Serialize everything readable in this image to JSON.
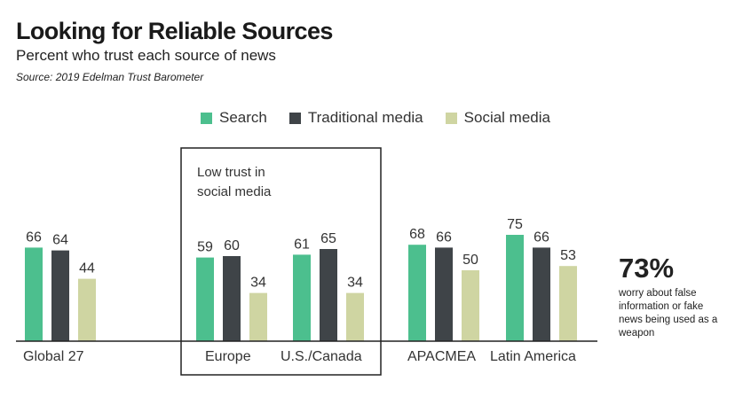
{
  "header": {
    "title": "Looking for Reliable Sources",
    "subtitle": "Percent who trust each source of news",
    "source": "Source: 2019 Edelman Trust Barometer"
  },
  "highlight_box": {
    "line1": "Low trust in",
    "line2": "social media"
  },
  "callout": {
    "value": "73%",
    "text": "worry about false information or fake news being used as a weapon"
  },
  "chart_data": {
    "type": "bar",
    "categories": [
      "Global 27",
      "Europe",
      "U.S./Canada",
      "APACMEA",
      "Latin America"
    ],
    "series": [
      {
        "name": "Search",
        "color": "#4cbf8e",
        "values": [
          66,
          59,
          61,
          68,
          75
        ]
      },
      {
        "name": "Traditional media",
        "color": "#3f4448",
        "values": [
          64,
          60,
          65,
          66,
          66
        ]
      },
      {
        "name": "Social media",
        "color": "#cfd5a2",
        "values": [
          44,
          34,
          34,
          50,
          53
        ]
      }
    ],
    "ylim": [
      0,
      100
    ],
    "grid": false,
    "legend": "top-center"
  }
}
